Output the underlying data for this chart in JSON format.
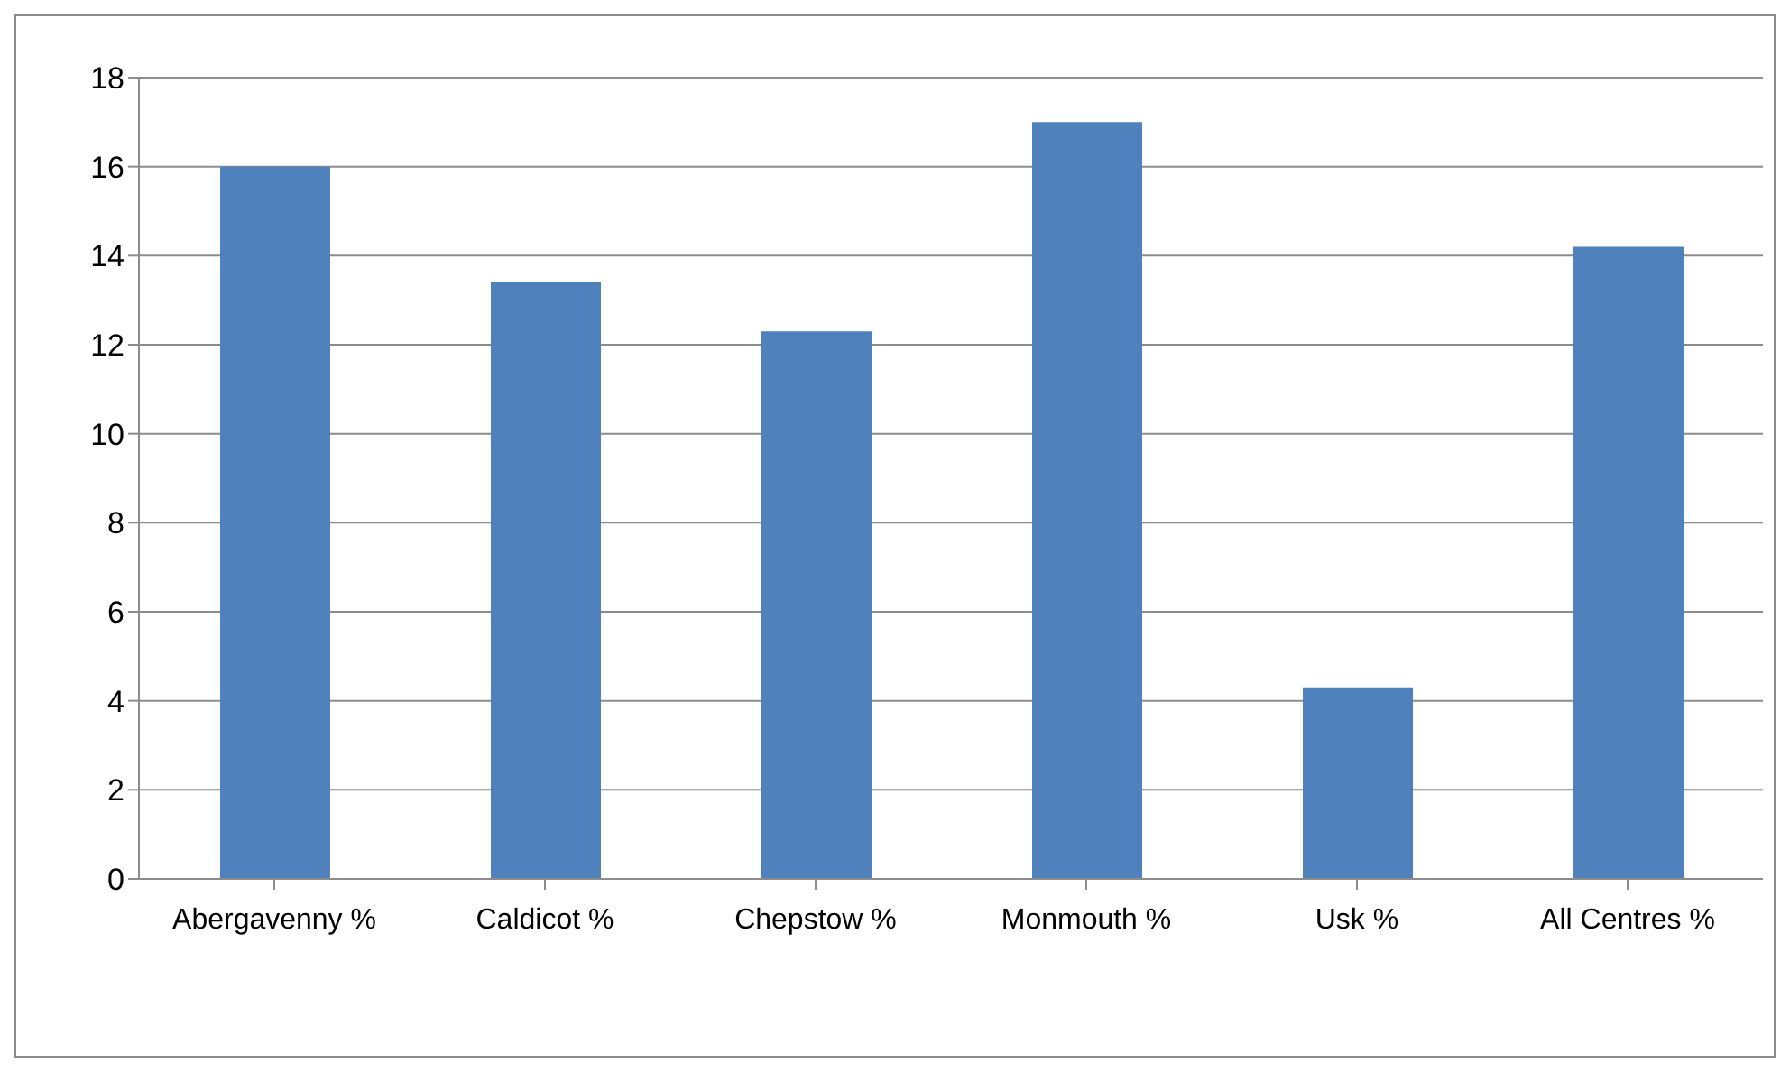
{
  "chart_data": {
    "type": "bar",
    "categories": [
      "Abergavenny %",
      "Caldicot %",
      "Chepstow %",
      "Monmouth %",
      "Usk %",
      "All Centres %"
    ],
    "values": [
      16,
      13.4,
      12.3,
      17,
      4.3,
      14.2
    ],
    "color": "#4f81bd",
    "ylim": [
      0,
      18
    ],
    "yticks": [
      0,
      2,
      4,
      6,
      8,
      10,
      12,
      14,
      16,
      18
    ],
    "grid": "y"
  }
}
